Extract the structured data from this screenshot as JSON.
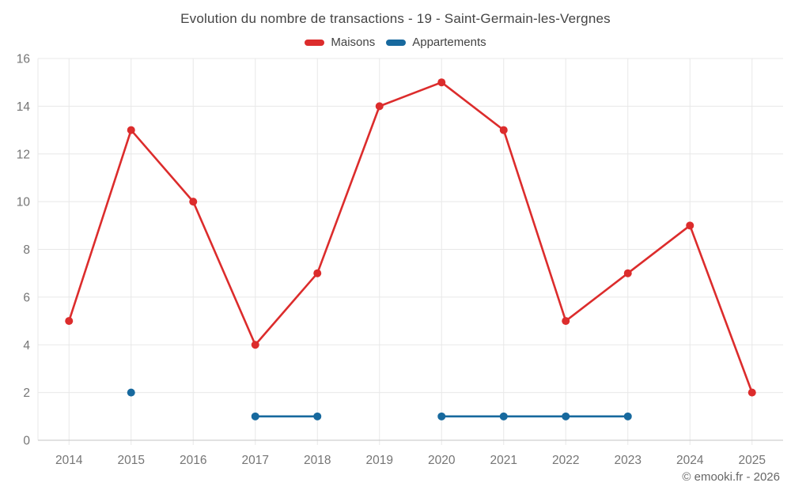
{
  "chart_data": {
    "type": "line",
    "title": "Evolution du nombre de transactions - 19 - Saint-Germain-les-Vergnes",
    "categories": [
      "2014",
      "2015",
      "2016",
      "2017",
      "2018",
      "2019",
      "2020",
      "2021",
      "2022",
      "2023",
      "2024",
      "2025"
    ],
    "series": [
      {
        "name": "Maisons",
        "color": "#dc2c2c",
        "values": [
          5,
          13,
          10,
          4,
          7,
          14,
          15,
          13,
          5,
          7,
          9,
          2
        ]
      },
      {
        "name": "Appartements",
        "color": "#17699e",
        "values": [
          null,
          2,
          null,
          1,
          1,
          null,
          1,
          1,
          1,
          1,
          null,
          null
        ]
      }
    ],
    "ylim": [
      0,
      16
    ],
    "ytick_step": 2,
    "ytick_labels": [
      "0",
      "2",
      "4",
      "6",
      "8",
      "10",
      "12",
      "14",
      "16"
    ],
    "grid": true,
    "legend_position": "top",
    "grid_color": "#e8e8e8",
    "axis_color": "#cfcfcf",
    "tick_label_color": "#757575"
  },
  "attribution": "© emooki.fr - 2026"
}
